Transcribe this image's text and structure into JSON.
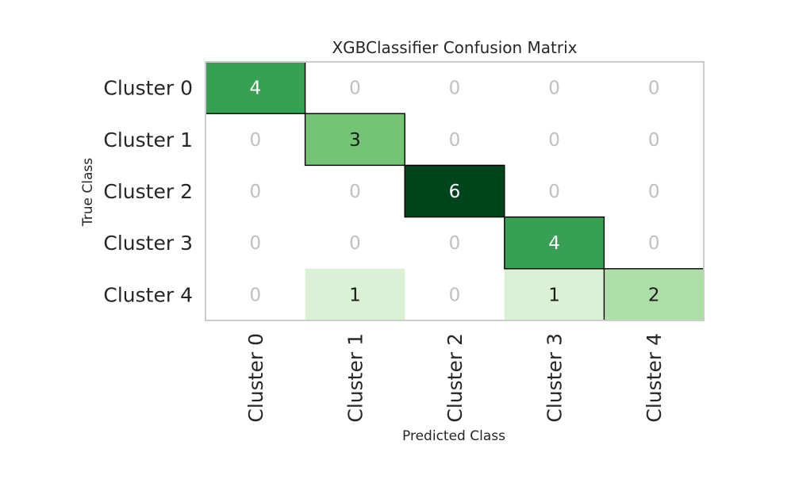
{
  "chart_data": {
    "type": "heatmap",
    "title": "XGBClassifier Confusion Matrix",
    "xlabel": "Predicted Class",
    "ylabel": "True Class",
    "x_categories": [
      "Cluster 0",
      "Cluster 1",
      "Cluster 2",
      "Cluster 3",
      "Cluster 4"
    ],
    "y_categories": [
      "Cluster 0",
      "Cluster 1",
      "Cluster 2",
      "Cluster 3",
      "Cluster 4"
    ],
    "values": [
      [
        4,
        0,
        0,
        0,
        0
      ],
      [
        0,
        3,
        0,
        0,
        0
      ],
      [
        0,
        0,
        6,
        0,
        0
      ],
      [
        0,
        0,
        0,
        4,
        0
      ],
      [
        0,
        1,
        0,
        1,
        2
      ]
    ],
    "colormap": "Greens",
    "zero_text_color": "#c0c0c0",
    "diagonal_outlined": true,
    "grid": false
  }
}
